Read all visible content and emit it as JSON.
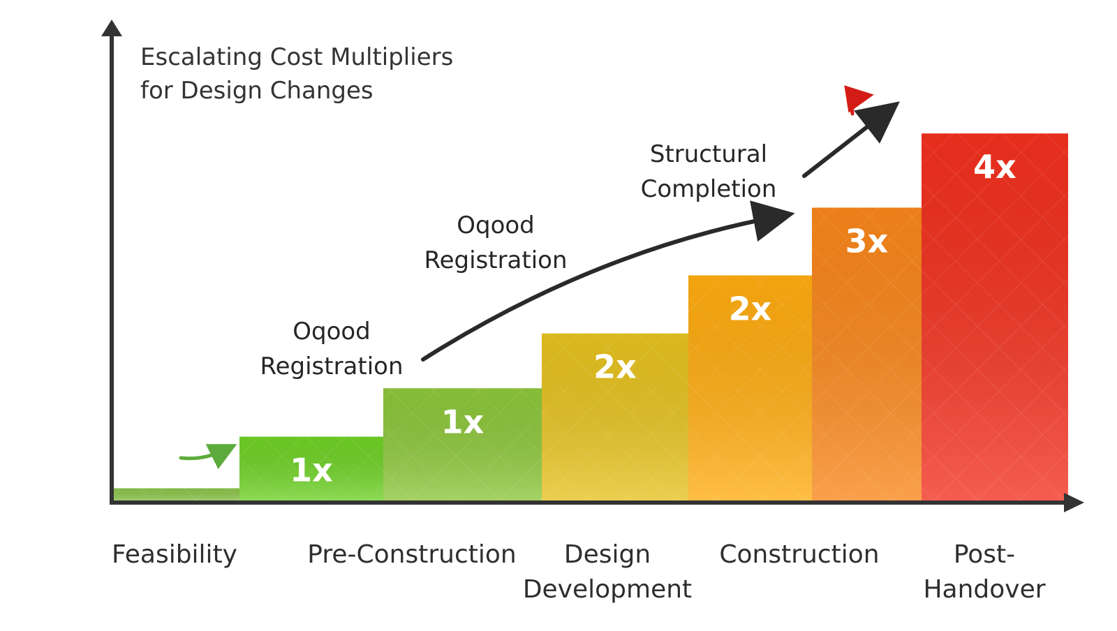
{
  "chart_data": {
    "type": "bar",
    "title_lines": [
      "Escalating Cost Multipliers",
      "for Design Changes"
    ],
    "categories": [
      {
        "label_lines": [
          "Feasibility"
        ]
      },
      {
        "label_lines": [
          "Pre-Construction"
        ]
      },
      {
        "label_lines": [
          "Design",
          "Development"
        ]
      },
      {
        "label_lines": [
          "Construction"
        ]
      },
      {
        "label_lines": [
          "Post-",
          "Handover"
        ]
      }
    ],
    "steps": [
      {
        "category": 0,
        "level": 0.2,
        "label": "",
        "color": "#8cc34a"
      },
      {
        "category": 1,
        "level": 1.0,
        "label": "1x",
        "color": "#6fd126"
      },
      {
        "category": 1,
        "level": 1.75,
        "label": "1x",
        "color": "#8cc63a"
      },
      {
        "category": 2,
        "level": 2.6,
        "label": "2x",
        "color": "#e6c21f"
      },
      {
        "category": 3,
        "level": 3.5,
        "label": "2x",
        "color": "#ffac10"
      },
      {
        "category": 3,
        "level": 4.55,
        "label": "3x",
        "color": "#f9861a"
      },
      {
        "category": 4,
        "level": 5.7,
        "label": "4x",
        "color": "#f2301e"
      }
    ],
    "ylim": [
      0,
      6.2
    ],
    "grid": false,
    "annotations": [
      {
        "lines": [
          "Oqood",
          "Registration"
        ],
        "near_category": 1
      },
      {
        "lines": [
          "Oqood",
          "Registration"
        ],
        "near_category": 2
      },
      {
        "lines": [
          "Structural",
          "Completion"
        ],
        "near_category": 3
      }
    ]
  }
}
